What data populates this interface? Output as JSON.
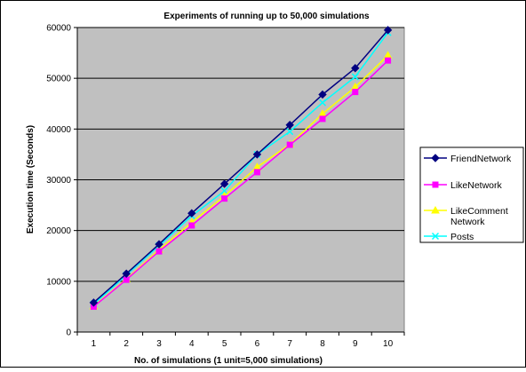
{
  "chart_data": {
    "type": "line",
    "title": "Experiments of running up to 50,000 simulations",
    "xlabel": "No. of simulations (1 unit=5,000 simulations)",
    "ylabel": "Execution time (Seconds)",
    "x": [
      1,
      2,
      3,
      4,
      5,
      6,
      7,
      8,
      9,
      10
    ],
    "ylim": [
      0,
      60000
    ],
    "yticks": [
      0,
      10000,
      20000,
      30000,
      40000,
      50000,
      60000
    ],
    "ytick_labels": [
      "0",
      "10000",
      "20000",
      "30000",
      "40000",
      "50000",
      "60000"
    ],
    "xtick_labels": [
      "1",
      "2",
      "3",
      "4",
      "5",
      "6",
      "7",
      "8",
      "9",
      "10"
    ],
    "grid": "horizontal major gridlines",
    "plot_background": "#c0c0c0",
    "legend_position": "right",
    "series": [
      {
        "name": "FriendNetwork",
        "color": "#000080",
        "marker": "diamond",
        "values": [
          5800,
          11500,
          17300,
          23400,
          29200,
          35000,
          40800,
          46800,
          52000,
          59500
        ]
      },
      {
        "name": "LikeNetwork",
        "color": "#ff00ff",
        "marker": "square",
        "values": [
          5000,
          10300,
          15900,
          21000,
          26300,
          31500,
          36900,
          42000,
          47300,
          53500
        ]
      },
      {
        "name": "LikeComment\nNetwork",
        "color": "#ffff00",
        "marker": "triangle",
        "values": [
          5100,
          10400,
          16200,
          21600,
          26800,
          32500,
          37000,
          43000,
          48300,
          54500
        ]
      },
      {
        "name": "Posts",
        "color": "#00ffff",
        "marker": "x",
        "values": [
          5500,
          11200,
          17000,
          22900,
          27800,
          35000,
          39500,
          45200,
          50300,
          59000
        ]
      }
    ]
  }
}
